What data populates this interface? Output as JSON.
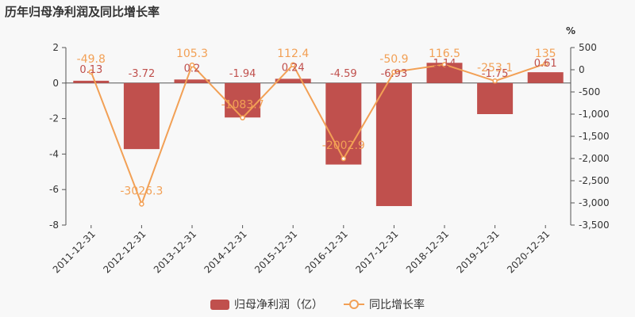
{
  "title": "历年归母净利润及同比增长率",
  "chart_data": {
    "type": "bar",
    "categories": [
      "2011-12-31",
      "2012-12-31",
      "2013-12-31",
      "2014-12-31",
      "2015-12-31",
      "2016-12-31",
      "2017-12-31",
      "2018-12-31",
      "2019-12-31",
      "2020-12-31"
    ],
    "series": [
      {
        "name": "归母净利润（亿）",
        "type": "bar",
        "axis": "left",
        "values": [
          0.13,
          -3.72,
          0.2,
          -1.94,
          0.24,
          -4.59,
          -6.93,
          1.14,
          -1.75,
          0.61
        ],
        "labels": [
          "0.13",
          "-3.72",
          "0.2",
          "-1.94",
          "0.24",
          "-4.59",
          "-6.93",
          "1.14",
          "-1.75",
          "0.61"
        ],
        "color": "#c0504d"
      },
      {
        "name": "同比增长率",
        "type": "line",
        "axis": "right",
        "values": [
          -49.8,
          -3026.3,
          105.3,
          -1083.7,
          112.4,
          -2002.9,
          -50.9,
          116.5,
          -253.1,
          135
        ],
        "labels": [
          "-49.8",
          "-3026.3",
          "105.3",
          "-1083.7",
          "112.4",
          "-2002.9",
          "-50.9",
          "116.5",
          "-253.1",
          "135"
        ],
        "color": "#f2a055"
      }
    ],
    "y_left": {
      "ylim": [
        -8,
        2
      ],
      "ticks": [
        "2",
        "0",
        "-2",
        "-4",
        "-6",
        "-8"
      ]
    },
    "y_right": {
      "ylim": [
        -3500,
        500
      ],
      "ticks": [
        "500",
        "0",
        "-500",
        "-1,000",
        "-1,500",
        "-2,000",
        "-2,500",
        "-3,000",
        "-3,500"
      ],
      "unit": "%"
    },
    "legend": "bottom"
  }
}
